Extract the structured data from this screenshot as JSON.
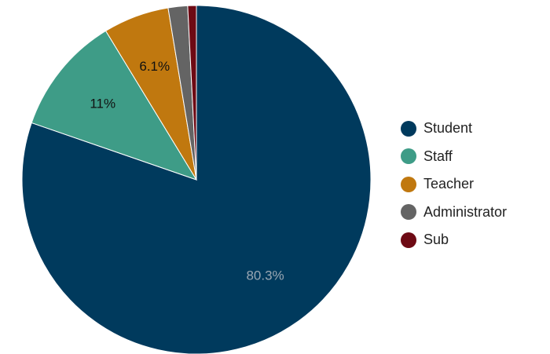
{
  "chart_data": {
    "type": "pie",
    "slices": [
      {
        "name": "Student",
        "value": 80.3,
        "label": "80.3%",
        "color": "#003a5d",
        "label_color": "#9aa7b3"
      },
      {
        "name": "Staff",
        "value": 11,
        "label": "11%",
        "color": "#3e9c87",
        "label_color": "#111111"
      },
      {
        "name": "Teacher",
        "value": 6.1,
        "label": "6.1%",
        "color": "#c0780f",
        "label_color": "#111111"
      },
      {
        "name": "Administrator",
        "value": 1.8,
        "label": "",
        "color": "#646464",
        "label_color": "#111111"
      },
      {
        "name": "Sub",
        "value": 0.8,
        "label": "",
        "color": "#6e0a14",
        "label_color": "#111111"
      }
    ],
    "start_angle": "12 o'clock",
    "direction": "clockwise",
    "legend_position": "right"
  }
}
